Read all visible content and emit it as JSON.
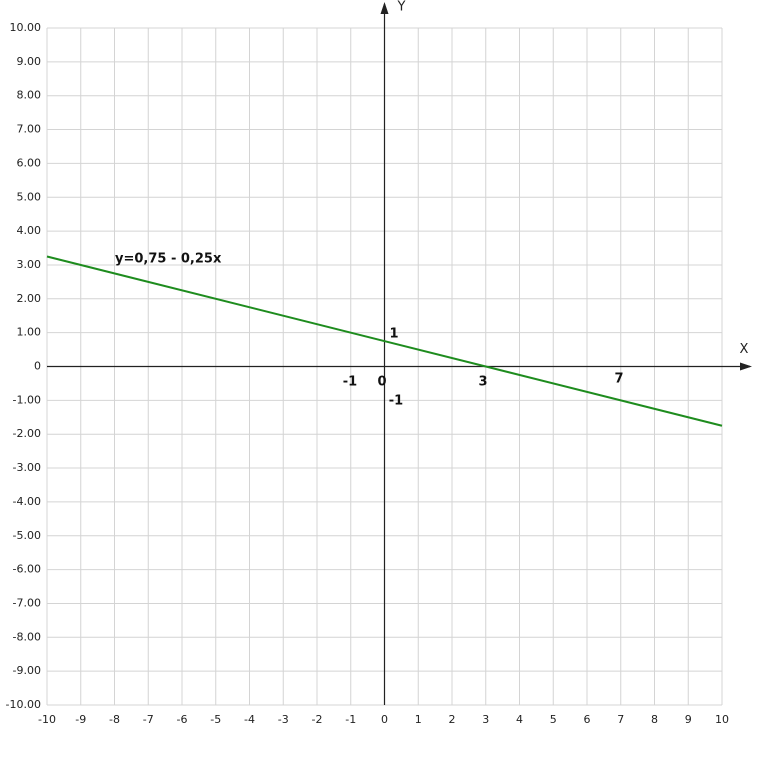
{
  "chart_data": {
    "type": "line",
    "x": [
      -10,
      10
    ],
    "series": [
      {
        "name": "y=0,75 - 0,25x",
        "color": "#1e8c1e",
        "values": [
          3.25,
          -1.75
        ]
      }
    ],
    "xlabel": "X",
    "ylabel": "Y",
    "annotations": [
      "y=0,75 - 0,25x",
      "1",
      "-1",
      "0",
      "3",
      "7",
      "-1"
    ],
    "xlim": [
      -10,
      10
    ],
    "xticks": [
      -10,
      -9,
      -8,
      -7,
      -6,
      -5,
      -4,
      -3,
      -2,
      -1,
      0,
      1,
      2,
      3,
      4,
      5,
      6,
      7,
      8,
      9,
      10
    ],
    "ylim": [
      -10,
      10
    ],
    "yticks": [
      {
        "value": 10,
        "label": "10.00"
      },
      {
        "value": 9,
        "label": "9.00"
      },
      {
        "value": 8,
        "label": "8.00"
      },
      {
        "value": 7,
        "label": "7.00"
      },
      {
        "value": 6,
        "label": "6.00"
      },
      {
        "value": 5,
        "label": "5.00"
      },
      {
        "value": 4,
        "label": "4.00"
      },
      {
        "value": 3,
        "label": "3.00"
      },
      {
        "value": 2,
        "label": "2.00"
      },
      {
        "value": 1,
        "label": "1.00"
      },
      0,
      {
        "value": -1,
        "label": "-1.00"
      },
      {
        "value": -2,
        "label": "-2.00"
      },
      {
        "value": -3,
        "label": "-3.00"
      },
      {
        "value": -4,
        "label": "-4.00"
      },
      {
        "value": -5,
        "label": "-5.00"
      },
      {
        "value": -6,
        "label": "-6.00"
      },
      {
        "value": -7,
        "label": "-7.00"
      },
      {
        "value": -8,
        "label": "-8.00"
      },
      {
        "value": -9,
        "label": "-9.00"
      },
      {
        "value": -10,
        "label": "-10.00"
      }
    ],
    "grid": true
  }
}
